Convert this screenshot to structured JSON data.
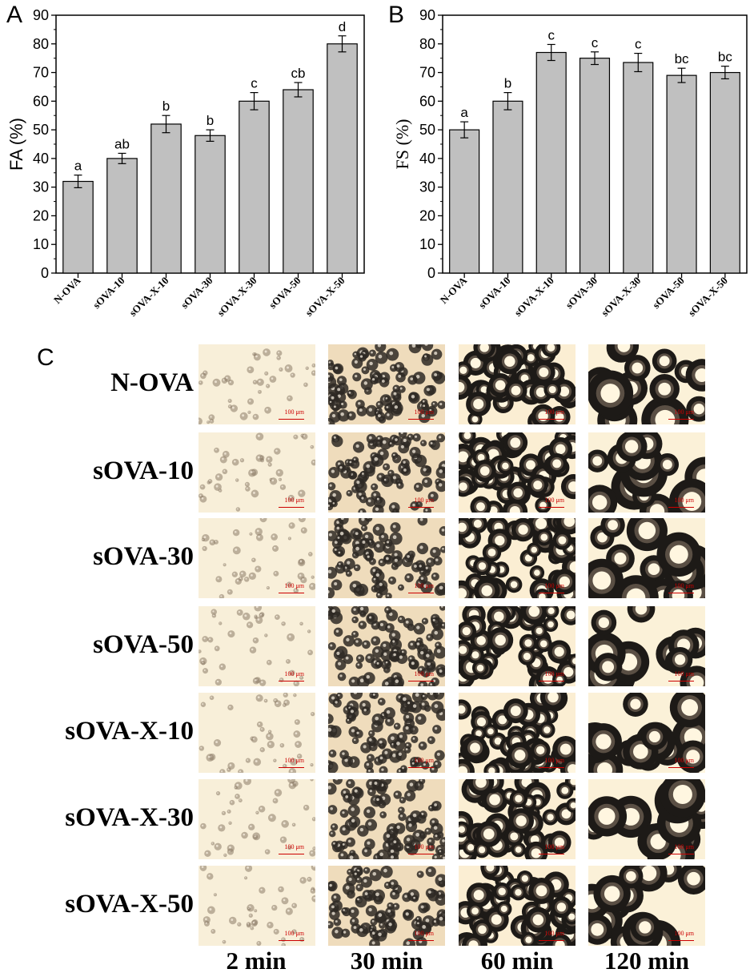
{
  "chart_data": [
    {
      "type": "bar",
      "panel": "A",
      "categories": [
        "N-OVA",
        "sOVA-10",
        "sOVA-X-10",
        "sOVA-30",
        "sOVA-X-30",
        "sOVA-50",
        "sOVA-X-50"
      ],
      "values": [
        32,
        40,
        52,
        48,
        60,
        64,
        80
      ],
      "errors": [
        2.2,
        1.8,
        3.0,
        2.0,
        3.0,
        2.5,
        2.8
      ],
      "letters": [
        "a",
        "ab",
        "b",
        "b",
        "c",
        "cb",
        "d"
      ],
      "xlabel": "",
      "ylabel": "FA (%)",
      "ylim": [
        0,
        90
      ],
      "yticks": [
        0,
        10,
        20,
        30,
        40,
        50,
        60,
        70,
        80,
        90
      ],
      "grid": false,
      "bar_color": "#c0c0c0"
    },
    {
      "type": "bar",
      "panel": "B",
      "categories": [
        "N-OVA",
        "sOVA-10",
        "sOVA-X-10",
        "sOVA-30",
        "sOVA-X-30",
        "sOVA-50",
        "sOVA-X-50"
      ],
      "values": [
        50,
        60,
        77,
        75,
        73.5,
        69,
        70
      ],
      "errors": [
        2.8,
        3.0,
        2.8,
        2.2,
        3.2,
        2.5,
        2.2
      ],
      "letters": [
        "a",
        "b",
        "c",
        "c",
        "c",
        "bc",
        "bc"
      ],
      "xlabel": "",
      "ylabel": "FS (%)",
      "ylim": [
        0,
        90
      ],
      "yticks": [
        0,
        10,
        20,
        30,
        40,
        50,
        60,
        70,
        80,
        90
      ],
      "grid": false,
      "bar_color": "#c0c0c0"
    }
  ],
  "panels": {
    "a": "A",
    "b": "B",
    "c": "C"
  },
  "micrographs": {
    "rows": [
      "N-OVA",
      "sOVA-10",
      "sOVA-30",
      "sOVA-50",
      "sOVA-X-10",
      "sOVA-X-30",
      "sOVA-X-50"
    ],
    "columns": [
      "2 min",
      "30 min",
      "60 min",
      "120 min"
    ],
    "scale_label": "100 μm"
  }
}
